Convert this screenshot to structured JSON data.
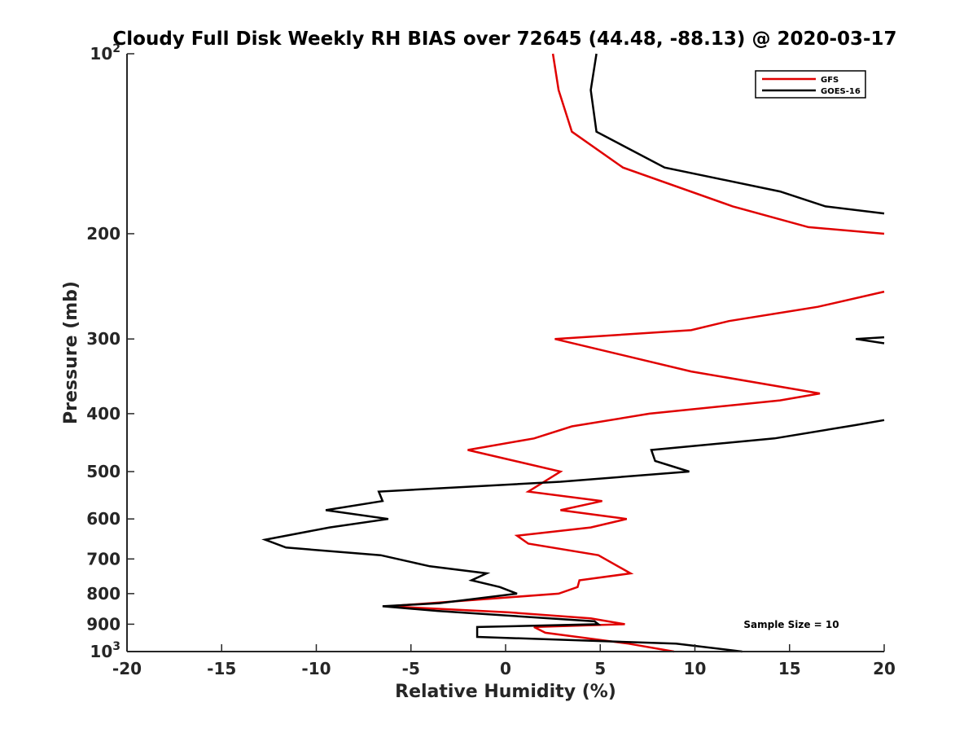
{
  "chart_data": {
    "type": "line",
    "title": "Cloudy Full Disk Weekly RH BIAS over 72645 (44.48, -88.13) @ 2020-03-17",
    "xlabel": "Relative Humidity (%)",
    "ylabel": "Pressure (mb)",
    "xlim": [
      -20,
      20
    ],
    "ylim": [
      100,
      1000
    ],
    "y_scale": "log",
    "y_reversed": true,
    "grid": false,
    "legend_position": "top-right",
    "x_ticks": [
      "-20",
      "-15",
      "-10",
      "-5",
      "0",
      "5",
      "10",
      "15",
      "20"
    ],
    "y_ticks": [
      {
        "value": 100,
        "base": "10",
        "exp": "2"
      },
      {
        "value": 200,
        "label": "200"
      },
      {
        "value": 300,
        "label": "300"
      },
      {
        "value": 400,
        "label": "400"
      },
      {
        "value": 500,
        "label": "500"
      },
      {
        "value": 600,
        "label": "600"
      },
      {
        "value": 700,
        "label": "700"
      },
      {
        "value": 800,
        "label": "800"
      },
      {
        "value": 900,
        "label": "900"
      },
      {
        "value": 1000,
        "base": "10",
        "exp": "3"
      }
    ],
    "annotation": "Sample Size = 10",
    "series": [
      {
        "name": "GFS",
        "color": "#e00000",
        "segments": [
          [
            [
              2.5,
              100
            ],
            [
              2.8,
              115
            ],
            [
              3.5,
              135
            ],
            [
              6.2,
              155
            ],
            [
              12,
              180
            ],
            [
              16,
              195
            ],
            [
              20,
              200
            ]
          ],
          [
            [
              20,
              250
            ],
            [
              16.5,
              265
            ],
            [
              11.8,
              280
            ],
            [
              9.8,
              290
            ],
            [
              2.6,
              300
            ],
            [
              9.8,
              340
            ],
            [
              16.6,
              370
            ],
            [
              14.5,
              380
            ],
            [
              7.6,
              400
            ],
            [
              3.5,
              420
            ],
            [
              1.5,
              440
            ],
            [
              -2.0,
              460
            ],
            [
              2.9,
              500
            ],
            [
              1.2,
              540
            ],
            [
              5.1,
              560
            ],
            [
              2.9,
              580
            ],
            [
              6.4,
              600
            ],
            [
              4.5,
              620
            ],
            [
              0.6,
              640
            ],
            [
              1.2,
              660
            ],
            [
              4.9,
              690
            ],
            [
              6.6,
              740
            ],
            [
              3.9,
              760
            ],
            [
              3.8,
              780
            ],
            [
              2.8,
              800
            ],
            [
              -6.2,
              840
            ],
            [
              0.2,
              860
            ],
            [
              4.5,
              880
            ],
            [
              6.3,
              900
            ],
            [
              1.5,
              910
            ],
            [
              2.1,
              930
            ],
            [
              6.5,
              970
            ],
            [
              8.9,
              1000
            ]
          ]
        ]
      },
      {
        "name": "GOES-16",
        "color": "#000000",
        "segments": [
          [
            [
              4.8,
              100
            ],
            [
              4.5,
              115
            ],
            [
              4.8,
              135
            ],
            [
              8.4,
              155
            ],
            [
              14.5,
              170
            ],
            [
              16.9,
              180
            ],
            [
              20,
              185
            ]
          ],
          [
            [
              20,
              298
            ],
            [
              18.5,
              300
            ],
            [
              20,
              305
            ]
          ],
          [
            [
              20,
              410
            ],
            [
              18.5,
              418
            ],
            [
              14.2,
              440
            ],
            [
              7.7,
              460
            ],
            [
              7.9,
              480
            ],
            [
              9.7,
              500
            ],
            [
              2.9,
              520
            ],
            [
              -6.7,
              540
            ],
            [
              -6.5,
              560
            ],
            [
              -9.5,
              580
            ],
            [
              -6.2,
              600
            ],
            [
              -9.3,
              620
            ],
            [
              -12.7,
              650
            ],
            [
              -11.6,
              670
            ],
            [
              -6.6,
              690
            ],
            [
              -4.0,
              720
            ],
            [
              -1.0,
              740
            ],
            [
              -1.8,
              760
            ],
            [
              -0.3,
              780
            ],
            [
              0.6,
              800
            ],
            [
              -3.5,
              830
            ],
            [
              -6.5,
              840
            ],
            [
              -3.6,
              855
            ],
            [
              4.7,
              890
            ],
            [
              4.9,
              900
            ],
            [
              -1.5,
              910
            ],
            [
              -1.5,
              945
            ],
            [
              9.0,
              970
            ],
            [
              12.5,
              1000
            ]
          ]
        ]
      }
    ]
  }
}
